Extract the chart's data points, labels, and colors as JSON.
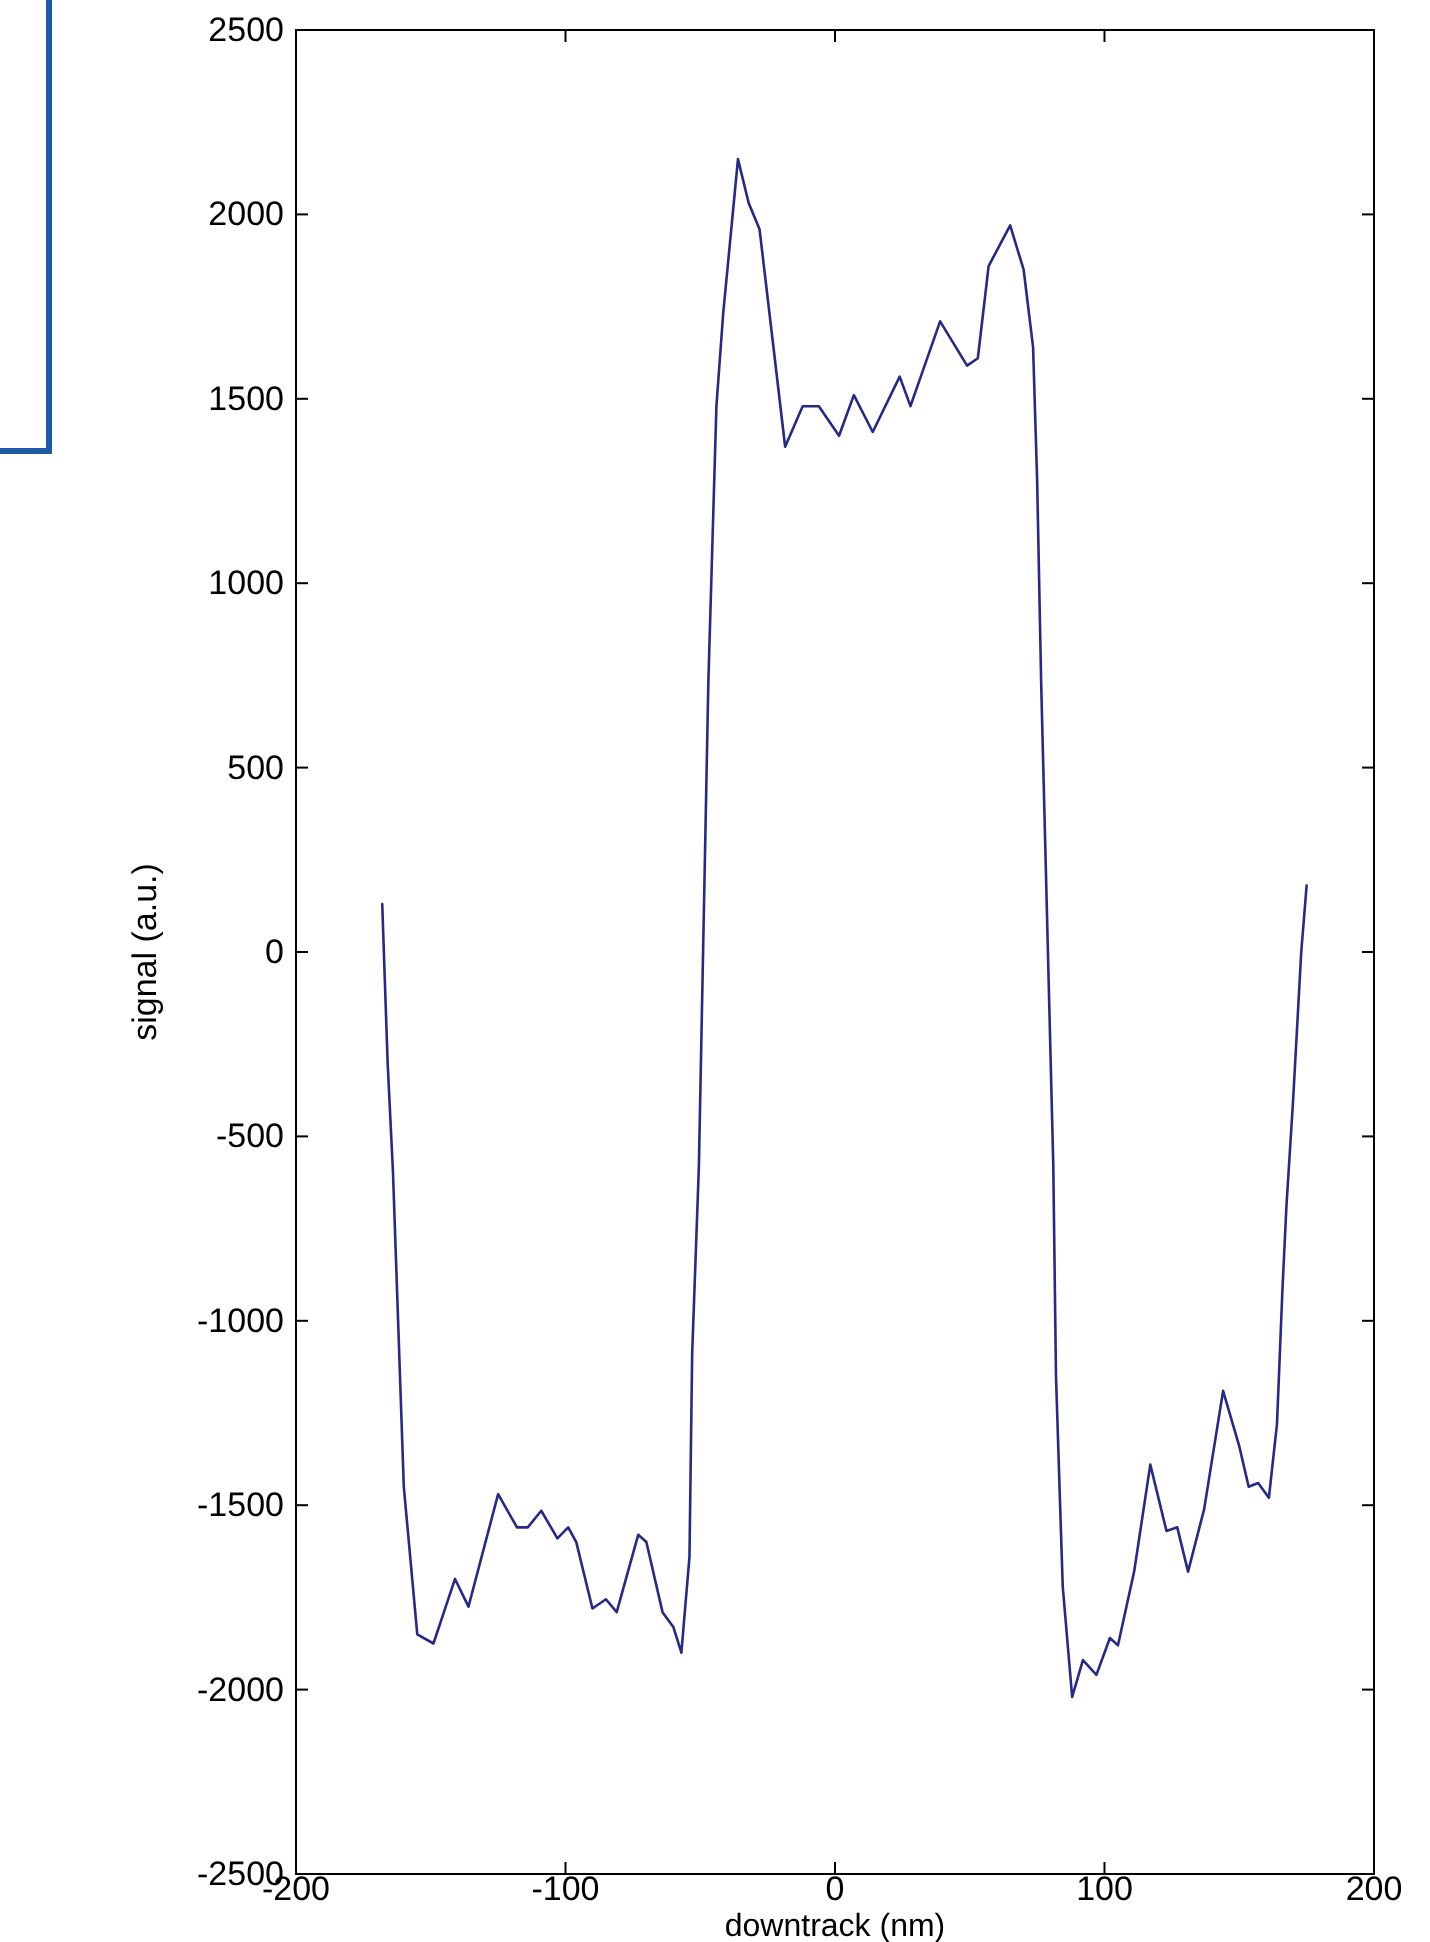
{
  "chart_data": {
    "type": "line",
    "xlabel": "downtrack (nm)",
    "ylabel": "signal (a.u.)",
    "xlim": [
      -200,
      200
    ],
    "xticks": [
      -200,
      -100,
      0,
      100,
      200
    ],
    "ylim": [
      -2500,
      2500
    ],
    "yticks": [
      -2500,
      -2000,
      -1500,
      -1000,
      -500,
      0,
      500,
      1000,
      1500,
      2000,
      2500
    ],
    "grid": false,
    "marker": "none",
    "line_style": "solid",
    "series": [
      {
        "color": "#262a86",
        "x": [
          -168,
          -166,
          -164,
          -160,
          -155,
          -149,
          -141,
          -136,
          -125,
          -118,
          -114,
          -109,
          -103,
          -99,
          -96,
          -90,
          -85,
          -81,
          -73,
          -70,
          -64,
          -60,
          -57,
          -54,
          -53,
          -50.5,
          -47,
          -44,
          -41.5,
          -36,
          -32,
          -28,
          -23,
          -18.5,
          -12,
          -6,
          1.5,
          7,
          14,
          24,
          28,
          39,
          49,
          53,
          57,
          65,
          70,
          73.5,
          75,
          76.5,
          81,
          82,
          84.5,
          88,
          92,
          97,
          102,
          105,
          111,
          117,
          123,
          127,
          131,
          137,
          144,
          150,
          153.5,
          157,
          161,
          164,
          166,
          167.5,
          170,
          173,
          175
        ],
        "values": [
          130,
          -300,
          -600,
          -1450,
          -1850,
          -1875,
          -1700,
          -1775,
          -1470,
          -1560,
          -1560,
          -1515,
          -1590,
          -1560,
          -1600,
          -1780,
          -1755,
          -1790,
          -1580,
          -1600,
          -1790,
          -1830,
          -1900,
          -1640,
          -1090,
          -580,
          730,
          1480,
          1730,
          2150,
          2030,
          1960,
          1650,
          1370,
          1480,
          1480,
          1400,
          1510,
          1410,
          1560,
          1480,
          1710,
          1590,
          1610,
          1860,
          1970,
          1850,
          1640,
          1280,
          730,
          -580,
          -1150,
          -1720,
          -2020,
          -1920,
          -1960,
          -1860,
          -1880,
          -1680,
          -1390,
          -1570,
          -1560,
          -1680,
          -1510,
          -1190,
          -1340,
          -1450,
          -1440,
          -1480,
          -1280,
          -920,
          -690,
          -400,
          0,
          180
        ]
      }
    ]
  }
}
